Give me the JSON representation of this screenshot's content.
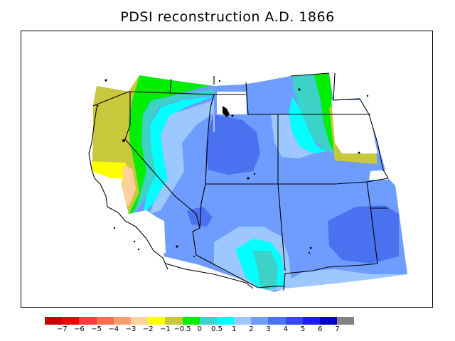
{
  "title": "PDSI reconstruction A.D. 1866",
  "colors": {
    "c_m8": "#c40000",
    "c_m7": "#ee0000",
    "c_m6": "#ff3c3c",
    "c_m5": "#ff6e48",
    "c_m4": "#ff9c6e",
    "c_m3": "#ffd19c",
    "c_m2": "#ffff00",
    "c_m1": "#c8c83c",
    "c_m05": "#00ee00",
    "c_0": "#3cd2c8",
    "c_05": "#00ffff",
    "c_1": "#9cc8ff",
    "c_2": "#6e9cff",
    "c_3": "#4a72f0",
    "c_4": "#3848f0",
    "c_5": "#1c1cf0",
    "c_6": "#0000c8",
    "c_7": "#828282"
  },
  "legend": {
    "swatches": [
      "#c40000",
      "#ee0000",
      "#ff3c3c",
      "#ff6e48",
      "#ff9c6e",
      "#ffd19c",
      "#ffff00",
      "#c8c83c",
      "#00ee00",
      "#3cd2c8",
      "#00ffff",
      "#9cc8ff",
      "#6e9cff",
      "#4a72f0",
      "#3848f0",
      "#1c1cf0",
      "#0000c8",
      "#828282"
    ],
    "labels": [
      "−7",
      "−6",
      "−5",
      "−4",
      "−3",
      "−2",
      "−1",
      "−0.5",
      "0",
      "0.5",
      "1",
      "2",
      "3",
      "4",
      "5",
      "6",
      "7"
    ]
  }
}
